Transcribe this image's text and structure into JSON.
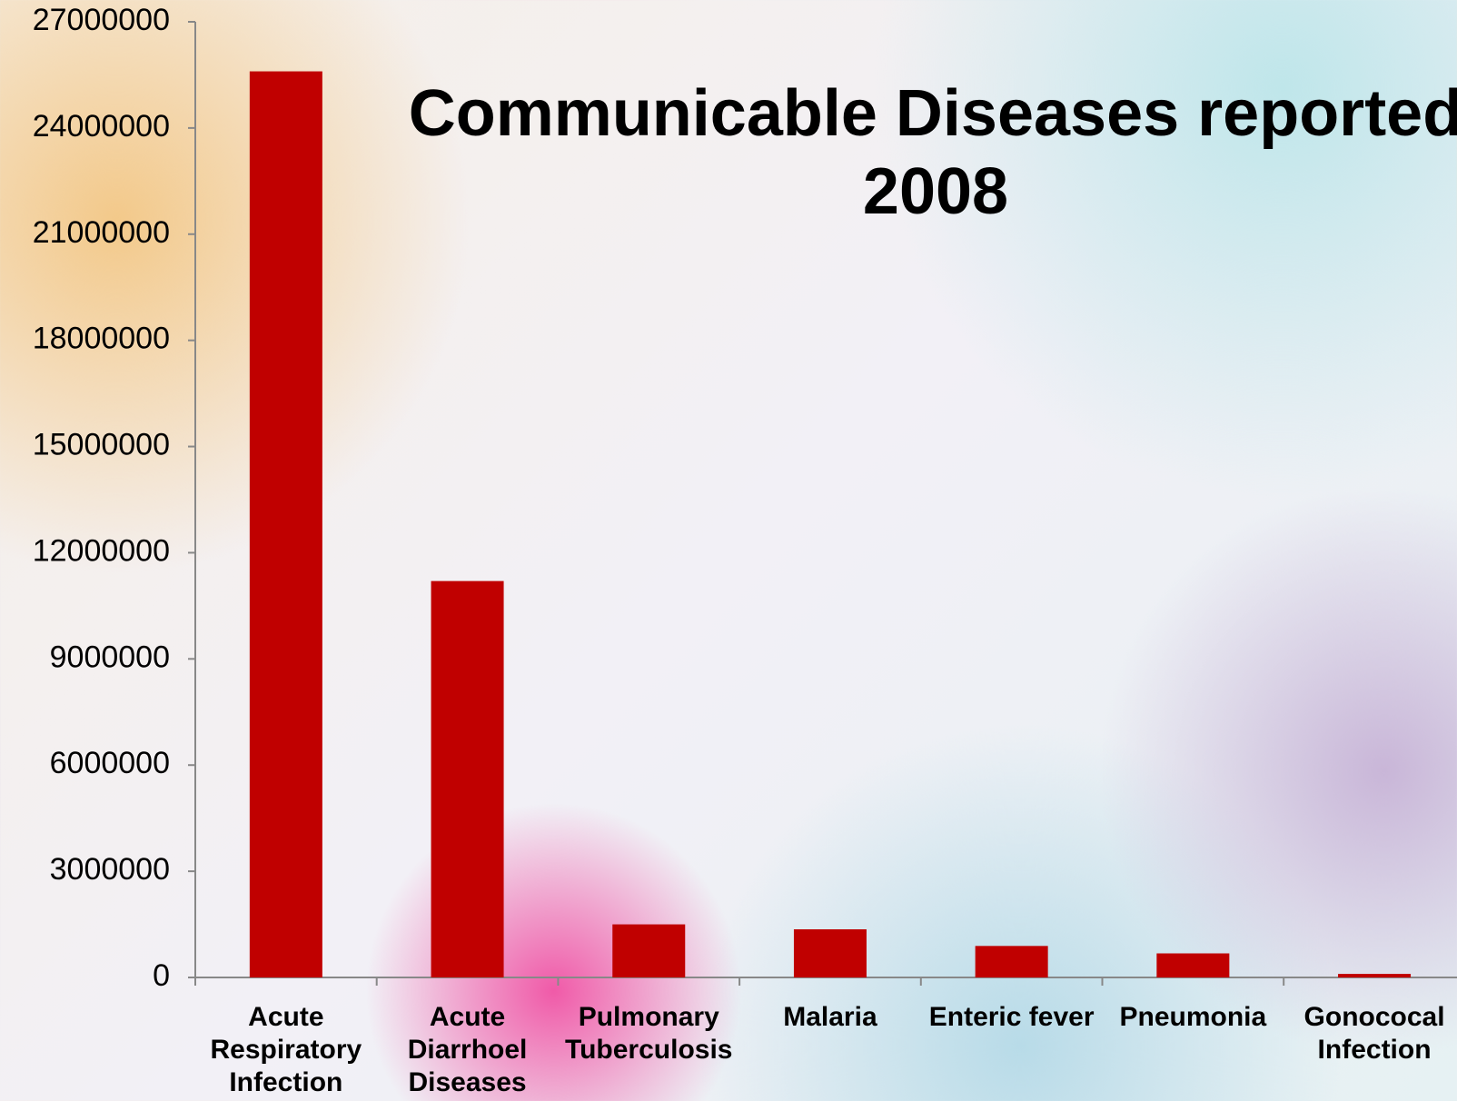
{
  "chart_data": {
    "type": "bar",
    "title": "Communicable  Diseases reported 2008",
    "categories": [
      "Acute Respiratory Infection",
      "Acute Diarrhoel Diseases",
      "Pulmonary Tuberculosis",
      "Malaria",
      "Enteric fever",
      "Pneumonia",
      "Gonococal Infection"
    ],
    "values": [
      25600000,
      11200000,
      1500000,
      1360000,
      890000,
      680000,
      100000
    ],
    "color": "#c00000",
    "ylim": [
      0,
      27000000
    ],
    "yticks": [
      0,
      3000000,
      6000000,
      9000000,
      12000000,
      15000000,
      18000000,
      21000000,
      24000000,
      27000000
    ],
    "grid": false
  }
}
